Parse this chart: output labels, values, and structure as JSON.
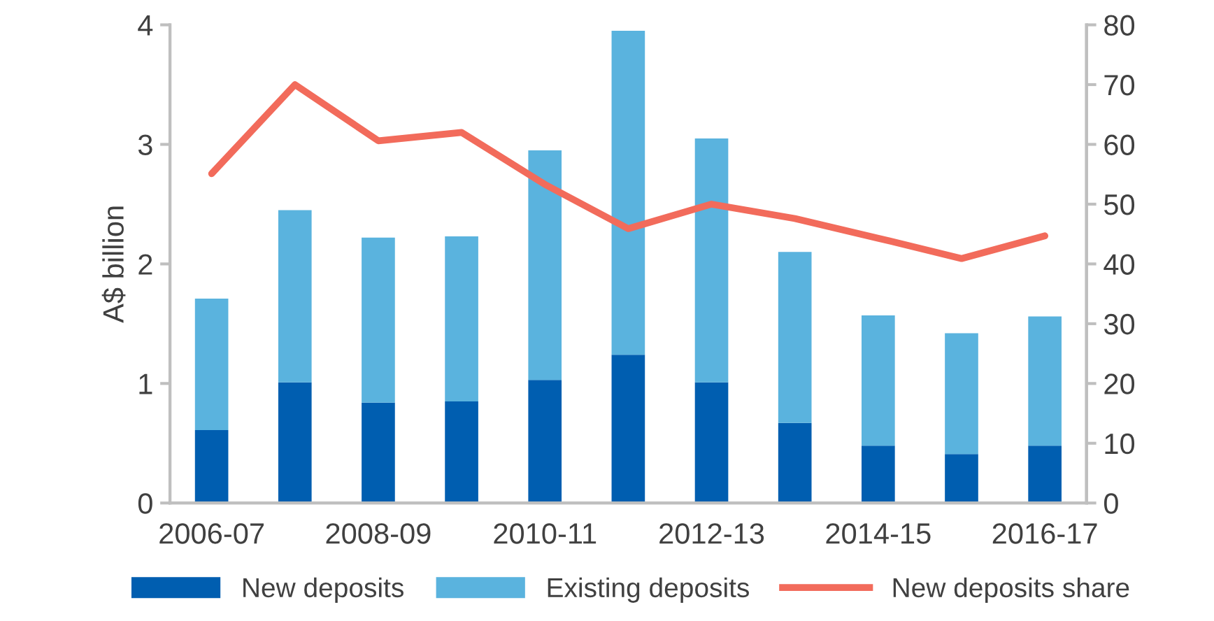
{
  "chart_data": {
    "type": "bar",
    "stacked": true,
    "categories": [
      "2006-07",
      null,
      "2008-09",
      null,
      "2010-11",
      null,
      "2012-13",
      null,
      "2014-15",
      null,
      "2016-17"
    ],
    "series": [
      {
        "name": "New deposits",
        "color": "#005eb0",
        "values": [
          0.61,
          1.01,
          0.84,
          0.85,
          1.03,
          1.24,
          1.01,
          0.67,
          0.48,
          0.41,
          0.48
        ]
      },
      {
        "name": "Existing deposits",
        "color": "#5ab3de",
        "values": [
          1.1,
          1.44,
          1.38,
          1.38,
          1.92,
          2.71,
          2.04,
          1.43,
          1.09,
          1.01,
          1.08
        ]
      },
      {
        "name": "New deposits share",
        "type": "line",
        "axis": "y2",
        "color": "#f26b5b",
        "values": [
          55.1,
          70.0,
          60.6,
          62.0,
          53.3,
          45.9,
          50.0,
          47.6,
          44.3,
          40.9,
          44.7
        ]
      }
    ],
    "ylabel": "A$ billion",
    "ylim": [
      0,
      4
    ],
    "yticks": [
      0,
      1,
      2,
      3,
      4
    ],
    "y2lim": [
      0,
      80
    ],
    "y2ticks": [
      0,
      10,
      20,
      30,
      40,
      50,
      60,
      70,
      80
    ],
    "grid": false,
    "legend": "bottom"
  }
}
